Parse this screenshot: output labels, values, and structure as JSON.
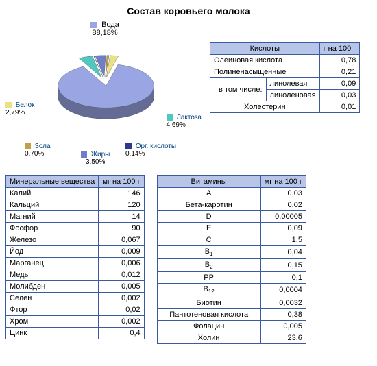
{
  "title": "Состав коровьего молока",
  "pie": {
    "type": "pie",
    "background_color": "#ffffff",
    "slices": [
      {
        "key": "water",
        "label": "Вода",
        "pct": "88,18%",
        "value": 88.18,
        "color": "#9aa5e3"
      },
      {
        "key": "lactose",
        "label": "Лактоза",
        "pct": "4,69%",
        "value": 4.69,
        "color": "#4fc8c1"
      },
      {
        "key": "acids",
        "label": "Орг. кислоты",
        "pct": "0,14%",
        "value": 0.14,
        "color": "#2f3a8a"
      },
      {
        "key": "fat",
        "label": "Жиры",
        "pct": "3,50%",
        "value": 3.5,
        "color": "#6f7fc7"
      },
      {
        "key": "ash",
        "label": "Зола",
        "pct": "0,70%",
        "value": 0.7,
        "color": "#c3a04a"
      },
      {
        "key": "protein",
        "label": "Белок",
        "pct": "2,79%",
        "value": 2.79,
        "color": "#e9e285"
      }
    ],
    "label_fontsize": 10,
    "label_color": "#004080"
  },
  "acids": {
    "header_left": "Кислоты",
    "header_right": "г на 100 г",
    "rows": [
      {
        "name": "Олеиновая кислота",
        "val": "0,78"
      },
      {
        "name": "Полиненасыщенные",
        "val": "0,21"
      }
    ],
    "sub_label": "в том числе:",
    "sub_rows": [
      {
        "name": "линолевая",
        "val": "0,09"
      },
      {
        "name": "линоленовая",
        "val": "0,03"
      }
    ],
    "chol": {
      "name": "Холестерин",
      "val": "0,01"
    }
  },
  "minerals": {
    "header_left": "Минеральные вещества",
    "header_right": "мг на 100 г",
    "rows": [
      {
        "name": "Калий",
        "val": "146"
      },
      {
        "name": "Кальций",
        "val": "120"
      },
      {
        "name": "Магний",
        "val": "14"
      },
      {
        "name": "Фосфор",
        "val": "90"
      },
      {
        "name": "Железо",
        "val": "0,067"
      },
      {
        "name": "Йод",
        "val": "0,009"
      },
      {
        "name": "Марганец",
        "val": "0,006"
      },
      {
        "name": "Медь",
        "val": "0,012"
      },
      {
        "name": "Молибден",
        "val": "0,005"
      },
      {
        "name": "Селен",
        "val": "0,002"
      },
      {
        "name": "Фтор",
        "val": "0,02"
      },
      {
        "name": "Хром",
        "val": "0,002"
      },
      {
        "name": "Цинк",
        "val": "0,4"
      }
    ]
  },
  "vitamins": {
    "header_left": "Витамины",
    "header_right": "мг на 100 г",
    "rows": [
      {
        "name": "A",
        "val": "0,03"
      },
      {
        "name": "Бета-каротин",
        "val": "0,02"
      },
      {
        "name": "D",
        "val": "0,00005"
      },
      {
        "name": "E",
        "val": "0,09"
      },
      {
        "name": "C",
        "val": "1,5"
      },
      {
        "name": "B1",
        "val": "0,04",
        "sub": "1"
      },
      {
        "name": "B2",
        "val": "0,15",
        "sub": "2"
      },
      {
        "name": "PP",
        "val": "0,1"
      },
      {
        "name": "B12",
        "val": "0,0004",
        "sub": "12"
      },
      {
        "name": "Биотин",
        "val": "0,0032"
      },
      {
        "name": "Пантотеновая кислота",
        "val": "0,38"
      },
      {
        "name": "Фолацин",
        "val": "0,005"
      },
      {
        "name": "Холин",
        "val": "23,6"
      }
    ]
  },
  "table_style": {
    "header_bg": "#b7c5e8",
    "border_color": "#3b5aa0",
    "cell_fontsize": 11
  }
}
